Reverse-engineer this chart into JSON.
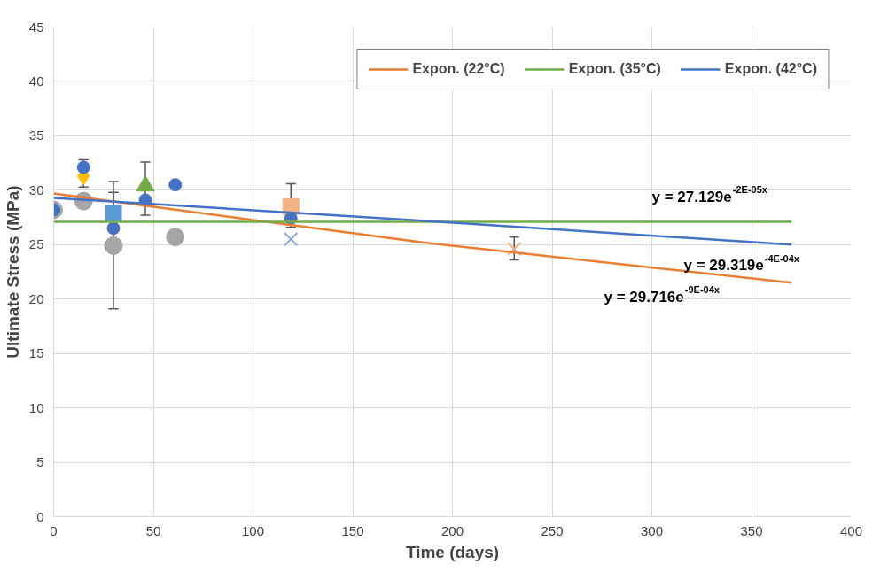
{
  "chart_data": {
    "type": "scatter",
    "xlabel": "Time (days)",
    "ylabel": "Ultimate Stress (MPa)",
    "xlim": [
      0,
      400
    ],
    "xticks": [
      0,
      50,
      100,
      150,
      200,
      250,
      300,
      350,
      400
    ],
    "ylim": [
      0,
      45
    ],
    "yticks": [
      0,
      5,
      10,
      15,
      20,
      25,
      30,
      35,
      40,
      45
    ],
    "grid": true,
    "legend": "top right",
    "series": [
      {
        "marker": "circle",
        "color": "#a5a5a5",
        "x": [
          0,
          15,
          30,
          61
        ],
        "values": [
          28.2,
          29.0,
          24.9,
          25.7
        ],
        "errors": [
          null,
          null,
          [
            19.1,
            29.8
          ],
          null
        ]
      },
      {
        "marker": "diamond",
        "color": "#ffc000",
        "x": [
          15
        ],
        "values": [
          31.3
        ],
        "errors": [
          [
            30.3,
            32.8
          ]
        ]
      },
      {
        "marker": "square",
        "color": "#5b9bd5",
        "x": [
          30
        ],
        "values": [
          27.9
        ],
        "errors": [
          [
            27.9,
            30.8
          ]
        ]
      },
      {
        "marker": "triangle",
        "color": "#70ad47",
        "x": [
          46
        ],
        "values": [
          30.4
        ],
        "errors": [
          [
            27.7,
            32.6
          ]
        ]
      },
      {
        "marker": "square",
        "color": "#f4b183",
        "x": [
          119
        ],
        "values": [
          28.5
        ],
        "errors": [
          [
            26.6,
            30.6
          ]
        ]
      },
      {
        "marker": "cross",
        "color": "#8faadc",
        "x": [
          119
        ],
        "values": [
          25.5
        ]
      },
      {
        "marker": "cross",
        "color": "#f4b183",
        "x": [
          231
        ],
        "values": [
          24.6
        ],
        "errors": [
          [
            23.6,
            25.7
          ]
        ]
      },
      {
        "marker": "circle",
        "color": "#4472c4",
        "x": [
          0,
          15,
          30,
          46,
          61,
          119
        ],
        "values": [
          28.2,
          32.1,
          26.5,
          29.1,
          30.5,
          27.4
        ]
      },
      {
        "type": "line",
        "name": "Expon. (22°C)",
        "color": "#ed7d31",
        "x": [
          0,
          185,
          370
        ],
        "values": [
          29.7,
          25.2,
          21.5
        ]
      },
      {
        "type": "line",
        "name": "Expon. (35°C)",
        "color": "#70ad47",
        "x": [
          0,
          185,
          370
        ],
        "values": [
          27.1,
          27.1,
          27.1
        ]
      },
      {
        "type": "line",
        "name": "Expon. (42°C)",
        "color": "#4472c4",
        "x": [
          0,
          185,
          370
        ],
        "values": [
          29.3,
          27.2,
          25.0
        ]
      }
    ],
    "annotations": [
      "y = 27.129e$^{-2E-05x}$",
      "y = 29.319e$^{-4E-04x}$",
      "y = 29.716e$^{-9E-04x}$"
    ]
  }
}
